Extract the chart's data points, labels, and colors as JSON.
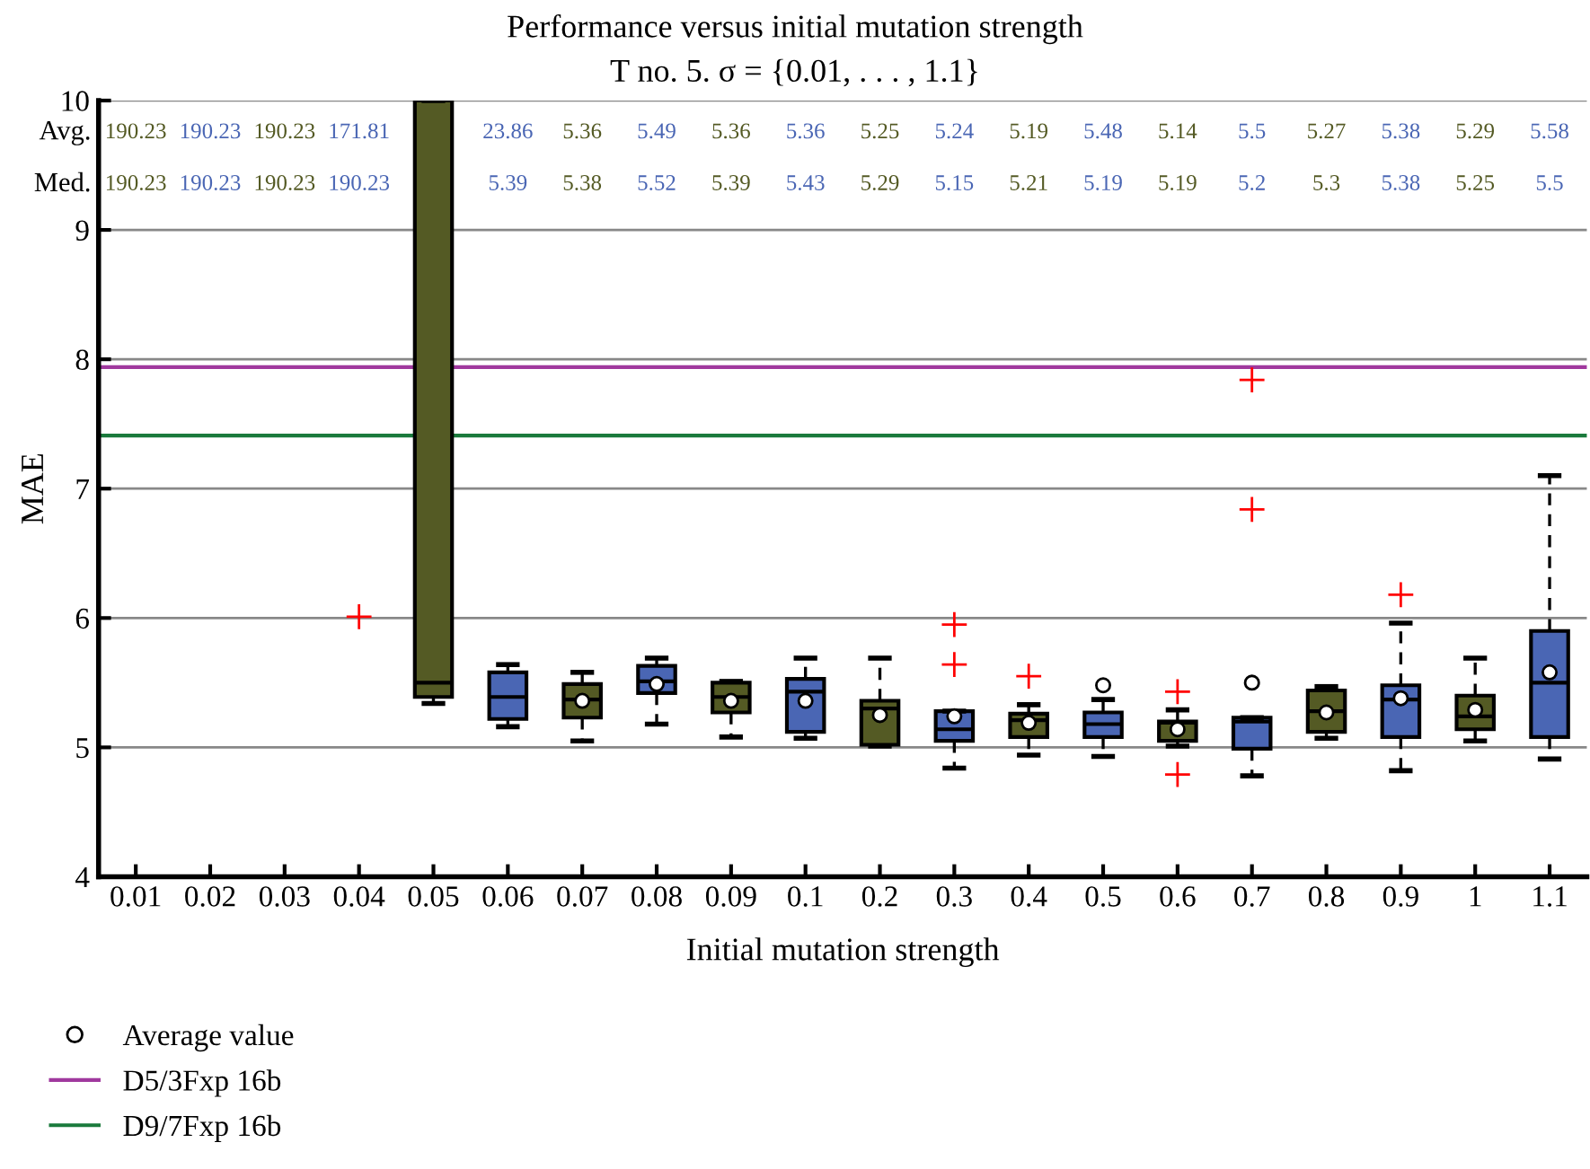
{
  "chart_data": {
    "type": "box",
    "title": "Performance versus initial mutation strength",
    "subtitle": "T no. 5. σ = {0.01, . . . , 1.1}",
    "xlabel": "Initial mutation strength",
    "ylabel": "MAE",
    "categories": [
      "0.01",
      "0.02",
      "0.03",
      "0.04",
      "0.05",
      "0.06",
      "0.07",
      "0.08",
      "0.09",
      "0.1",
      "0.2",
      "0.3",
      "0.4",
      "0.5",
      "0.6",
      "0.7",
      "0.8",
      "0.9",
      "1",
      "1.1"
    ],
    "colors": [
      "#545a24",
      "#4a66b4",
      "#545a24",
      "#4a66b4",
      "#545a24",
      "#4a66b4",
      "#545a24",
      "#4a66b4",
      "#545a24",
      "#4a66b4",
      "#545a24",
      "#4a66b4",
      "#545a24",
      "#4a66b4",
      "#545a24",
      "#4a66b4",
      "#545a24",
      "#4a66b4",
      "#545a24",
      "#4a66b4"
    ],
    "boxes": [
      null,
      null,
      null,
      null,
      {
        "low": 5.34,
        "q1": 5.39,
        "median": 5.5,
        "q3": 10,
        "high": 10
      },
      {
        "low": 5.16,
        "q1": 5.22,
        "median": 5.39,
        "q3": 5.58,
        "high": 5.64
      },
      {
        "low": 5.05,
        "q1": 5.23,
        "median": 5.37,
        "q3": 5.49,
        "high": 5.58
      },
      {
        "low": 5.18,
        "q1": 5.42,
        "median": 5.51,
        "q3": 5.63,
        "high": 5.69
      },
      {
        "low": 5.08,
        "q1": 5.27,
        "median": 5.39,
        "q3": 5.5,
        "high": 5.51
      },
      {
        "low": 5.07,
        "q1": 5.12,
        "median": 5.43,
        "q3": 5.53,
        "high": 5.69
      },
      {
        "low": 5.01,
        "q1": 5.02,
        "median": 5.3,
        "q3": 5.36,
        "high": 5.69
      },
      {
        "low": 4.84,
        "q1": 5.05,
        "median": 5.14,
        "q3": 5.28,
        "high": 5.28,
        "outliers": [
          5.95,
          5.64
        ]
      },
      {
        "low": 4.94,
        "q1": 5.08,
        "median": 5.21,
        "q3": 5.26,
        "high": 5.33,
        "outliers": [
          5.55
        ]
      },
      {
        "low": 4.93,
        "q1": 5.08,
        "median": 5.18,
        "q3": 5.27,
        "high": 5.37
      },
      {
        "low": 5.01,
        "q1": 5.05,
        "median": 5.19,
        "q3": 5.2,
        "high": 5.29,
        "outliers": [
          5.43,
          4.79
        ]
      },
      {
        "low": 4.78,
        "q1": 4.99,
        "median": 5.2,
        "q3": 5.23,
        "high": 5.23,
        "outliers": [
          7.84,
          6.84
        ]
      },
      {
        "low": 5.07,
        "q1": 5.12,
        "median": 5.28,
        "q3": 5.44,
        "high": 5.47
      },
      {
        "low": 4.82,
        "q1": 5.08,
        "median": 5.37,
        "q3": 5.48,
        "high": 5.96,
        "outliers": [
          6.18
        ]
      },
      {
        "low": 5.05,
        "q1": 5.14,
        "median": 5.24,
        "q3": 5.4,
        "high": 5.69
      },
      {
        "low": 4.91,
        "q1": 5.08,
        "median": 5.5,
        "q3": 5.9,
        "high": 7.1
      }
    ],
    "series": [
      {
        "type": "scatter",
        "name": "Average value",
        "color": "#ffffff",
        "values": [
          null,
          null,
          null,
          null,
          null,
          null,
          5.36,
          5.49,
          5.36,
          5.36,
          5.25,
          5.24,
          5.19,
          5.48,
          5.14,
          5.5,
          5.27,
          5.38,
          5.29,
          5.58
        ]
      },
      {
        "type": "scatter",
        "x": [
          "0.04"
        ],
        "values": [
          6.01
        ],
        "color": "#ff0000",
        "marker": "cross"
      }
    ],
    "marker": "circle",
    "ref_lines": [
      {
        "axis": "y",
        "value": 7.94,
        "label": "D5/3Fxp 16b",
        "color": "#a0399e"
      },
      {
        "axis": "y",
        "value": 7.41,
        "label": "D9/7Fxp 16b",
        "color": "#1a7a3c"
      }
    ],
    "annotations": [
      "Avg.",
      "Med.",
      "190.23",
      "190.23",
      "190.23",
      "171.81",
      "23.86",
      "5.36",
      "5.49",
      "5.36",
      "5.36",
      "5.25",
      "5.24",
      "5.19",
      "5.48",
      "5.14",
      "5.5",
      "5.27",
      "5.38",
      "5.29",
      "5.58",
      "190.23",
      "190.23",
      "190.23",
      "190.23",
      "5.39",
      "5.38",
      "5.52",
      "5.39",
      "5.43",
      "5.29",
      "5.15",
      "5.21",
      "5.19",
      "5.19",
      "5.2",
      "5.3",
      "5.38",
      "5.25",
      "5.5"
    ],
    "ylim": [
      4,
      10
    ],
    "yticks": [
      4,
      5,
      6,
      7,
      8,
      9,
      10
    ],
    "grid": "y",
    "legend": "bottom left"
  }
}
